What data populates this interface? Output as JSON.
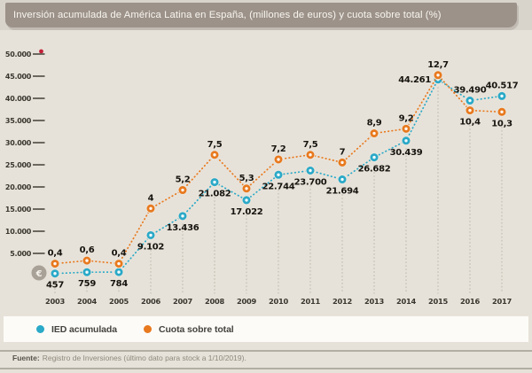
{
  "title": "Inversión acumulada de América Latina en España, (millones de euros) y cuota sobre total (%)",
  "footer": {
    "source_label": "Fuente:",
    "source_text": "Registro de Inversiones (último dato para stock a 1/10/2019)."
  },
  "icons": {
    "euro_icon": "€"
  },
  "colors": {
    "title_bar": "#9c9289",
    "page_bg": "#e7e2d9",
    "legend_bg": "#fcfbf8",
    "ied_blue": "#2aa9c8",
    "cuota_orange": "#e8791e",
    "axis_gradient_top": "#c32038",
    "axis_gradient_mid": "#ee8722",
    "axis_gradient_low": "#f5d03c",
    "grid": "#bfb9ae",
    "value_label_text": "#16140f"
  },
  "chart_data": {
    "type": "line",
    "title": "Inversión acumulada de América Latina en España, (millones de euros) y cuota sobre total (%)",
    "categories": [
      "2003",
      "2004",
      "2005",
      "2006",
      "2007",
      "2008",
      "2009",
      "2010",
      "2011",
      "2012",
      "2013",
      "2014",
      "2015",
      "2016",
      "2017"
    ],
    "y_axis_left": {
      "ticks": [
        "5.000",
        "10.000",
        "15.000",
        "20.000",
        "25.000",
        "30.000",
        "35.000",
        "40.000",
        "45.000",
        "50.000"
      ],
      "tick_values": [
        5000,
        10000,
        15000,
        20000,
        25000,
        30000,
        35000,
        40000,
        45000,
        50000
      ],
      "min": 0,
      "max": 50000,
      "unit": "millones de euros"
    },
    "y_axis_percent": {
      "min": 0,
      "max": 13,
      "unit": "%",
      "visible": false
    },
    "grid": "vertical-dotted",
    "legend_position": "bottom",
    "series": [
      {
        "name": "IED acumulada",
        "axis": "left",
        "color": "#2aa9c8",
        "values": [
          457,
          759,
          784,
          9102,
          13436,
          21082,
          17022,
          22744,
          23700,
          21694,
          26682,
          30439,
          44261,
          39490,
          40517
        ],
        "labels": [
          "457",
          "759",
          "784",
          "9.102",
          "13.436",
          "21.082",
          "17.022",
          "22.744",
          "23.700",
          "21.694",
          "26.682",
          "30.439",
          "44.261",
          "39.490",
          "40.517"
        ],
        "label_placement": [
          "below",
          "below",
          "below",
          "below",
          "below",
          "below",
          "below",
          "below",
          "below",
          "below",
          "below",
          "below",
          "left",
          "above",
          "above"
        ]
      },
      {
        "name": "Cuota sobre total",
        "axis": "percent",
        "color": "#e8791e",
        "values": [
          0.4,
          0.6,
          0.4,
          4,
          5.2,
          7.5,
          5.3,
          7.2,
          7.5,
          7,
          8.9,
          9.2,
          12.7,
          10.4,
          10.3
        ],
        "labels": [
          "0,4",
          "0,6",
          "0,4",
          "4",
          "5,2",
          "7,5",
          "5,3",
          "7,2",
          "7,5",
          "7",
          "8,9",
          "9,2",
          "12,7",
          "10,4",
          "10,3"
        ],
        "label_placement": [
          "above",
          "above",
          "above",
          "above",
          "above",
          "above",
          "above",
          "above",
          "above",
          "above",
          "above",
          "above",
          "above",
          "below",
          "below"
        ]
      }
    ]
  }
}
